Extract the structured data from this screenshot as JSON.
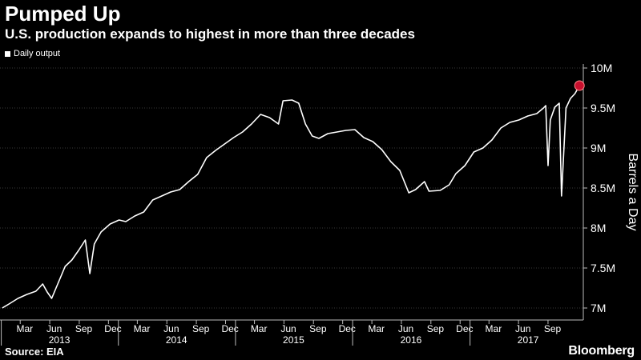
{
  "header": {
    "title": "Pumped Up",
    "subtitle": "U.S. production expands to highest in more than three decades"
  },
  "footer": {
    "source": "Source: EIA",
    "brand": "Bloomberg"
  },
  "chart_data": {
    "type": "line",
    "ylabel": "Barrels a Day",
    "ylim": [
      6850000,
      10050000
    ],
    "y_ticks": [
      7000000,
      7500000,
      8000000,
      8500000,
      9000000,
      9500000,
      10000000
    ],
    "y_tick_labels": [
      "7M",
      "7.5M",
      "8M",
      "8.5M",
      "9M",
      "9.5M",
      "10M"
    ],
    "y_axis_position": "right",
    "grid": true,
    "legend": "top-left",
    "x_months": [
      "Mar",
      "Jun",
      "Sep",
      "Dec",
      "Mar",
      "Jun",
      "Sep",
      "Dec",
      "Mar",
      "Jun",
      "Sep",
      "Dec",
      "Mar",
      "Jun",
      "Sep",
      "Dec",
      "Mar",
      "Jun",
      "Sep"
    ],
    "x_years": [
      "2013",
      "2014",
      "2015",
      "2016",
      "2017"
    ],
    "xlim": [
      "2012-12-28",
      "2017-12-20"
    ],
    "line_color": "#ffffff",
    "marker_color": "#c8102e",
    "series": [
      {
        "name": "Daily output",
        "points": [
          [
            "2013-01-04",
            7000000
          ],
          [
            "2013-01-25",
            7050000
          ],
          [
            "2013-02-22",
            7120000
          ],
          [
            "2013-03-22",
            7170000
          ],
          [
            "2013-04-19",
            7210000
          ],
          [
            "2013-05-10",
            7300000
          ],
          [
            "2013-05-24",
            7200000
          ],
          [
            "2013-06-07",
            7120000
          ],
          [
            "2013-06-28",
            7320000
          ],
          [
            "2013-07-19",
            7520000
          ],
          [
            "2013-08-09",
            7600000
          ],
          [
            "2013-08-30",
            7720000
          ],
          [
            "2013-09-20",
            7850000
          ],
          [
            "2013-10-04",
            7430000
          ],
          [
            "2013-10-18",
            7800000
          ],
          [
            "2013-11-08",
            7950000
          ],
          [
            "2013-12-06",
            8050000
          ],
          [
            "2014-01-03",
            8100000
          ],
          [
            "2014-01-24",
            8080000
          ],
          [
            "2014-02-21",
            8150000
          ],
          [
            "2014-03-21",
            8200000
          ],
          [
            "2014-04-18",
            8350000
          ],
          [
            "2014-05-16",
            8400000
          ],
          [
            "2014-06-13",
            8450000
          ],
          [
            "2014-07-11",
            8480000
          ],
          [
            "2014-08-08",
            8580000
          ],
          [
            "2014-09-05",
            8670000
          ],
          [
            "2014-10-03",
            8880000
          ],
          [
            "2014-10-31",
            8970000
          ],
          [
            "2014-11-28",
            9050000
          ],
          [
            "2014-12-26",
            9130000
          ],
          [
            "2015-01-23",
            9200000
          ],
          [
            "2015-02-20",
            9300000
          ],
          [
            "2015-03-20",
            9420000
          ],
          [
            "2015-04-17",
            9380000
          ],
          [
            "2015-05-15",
            9300000
          ],
          [
            "2015-05-29",
            9590000
          ],
          [
            "2015-06-26",
            9600000
          ],
          [
            "2015-07-17",
            9560000
          ],
          [
            "2015-08-07",
            9300000
          ],
          [
            "2015-08-28",
            9150000
          ],
          [
            "2015-09-18",
            9120000
          ],
          [
            "2015-10-16",
            9180000
          ],
          [
            "2015-11-13",
            9200000
          ],
          [
            "2015-12-11",
            9220000
          ],
          [
            "2016-01-08",
            9230000
          ],
          [
            "2016-02-05",
            9130000
          ],
          [
            "2016-03-04",
            9080000
          ],
          [
            "2016-04-01",
            8980000
          ],
          [
            "2016-04-29",
            8830000
          ],
          [
            "2016-05-27",
            8720000
          ],
          [
            "2016-06-24",
            8440000
          ],
          [
            "2016-07-15",
            8480000
          ],
          [
            "2016-08-12",
            8580000
          ],
          [
            "2016-08-26",
            8460000
          ],
          [
            "2016-09-30",
            8470000
          ],
          [
            "2016-10-28",
            8540000
          ],
          [
            "2016-11-18",
            8680000
          ],
          [
            "2016-12-16",
            8780000
          ],
          [
            "2017-01-13",
            8950000
          ],
          [
            "2017-02-10",
            9000000
          ],
          [
            "2017-03-10",
            9100000
          ],
          [
            "2017-04-07",
            9250000
          ],
          [
            "2017-05-05",
            9320000
          ],
          [
            "2017-06-02",
            9350000
          ],
          [
            "2017-06-30",
            9400000
          ],
          [
            "2017-07-28",
            9430000
          ],
          [
            "2017-08-18",
            9500000
          ],
          [
            "2017-08-25",
            9530000
          ],
          [
            "2017-09-01",
            8780000
          ],
          [
            "2017-09-08",
            9350000
          ],
          [
            "2017-09-22",
            9510000
          ],
          [
            "2017-10-06",
            9560000
          ],
          [
            "2017-10-13",
            8400000
          ],
          [
            "2017-10-27",
            9500000
          ],
          [
            "2017-11-10",
            9620000
          ],
          [
            "2017-11-24",
            9680000
          ],
          [
            "2017-12-08",
            9780000
          ]
        ]
      }
    ]
  }
}
